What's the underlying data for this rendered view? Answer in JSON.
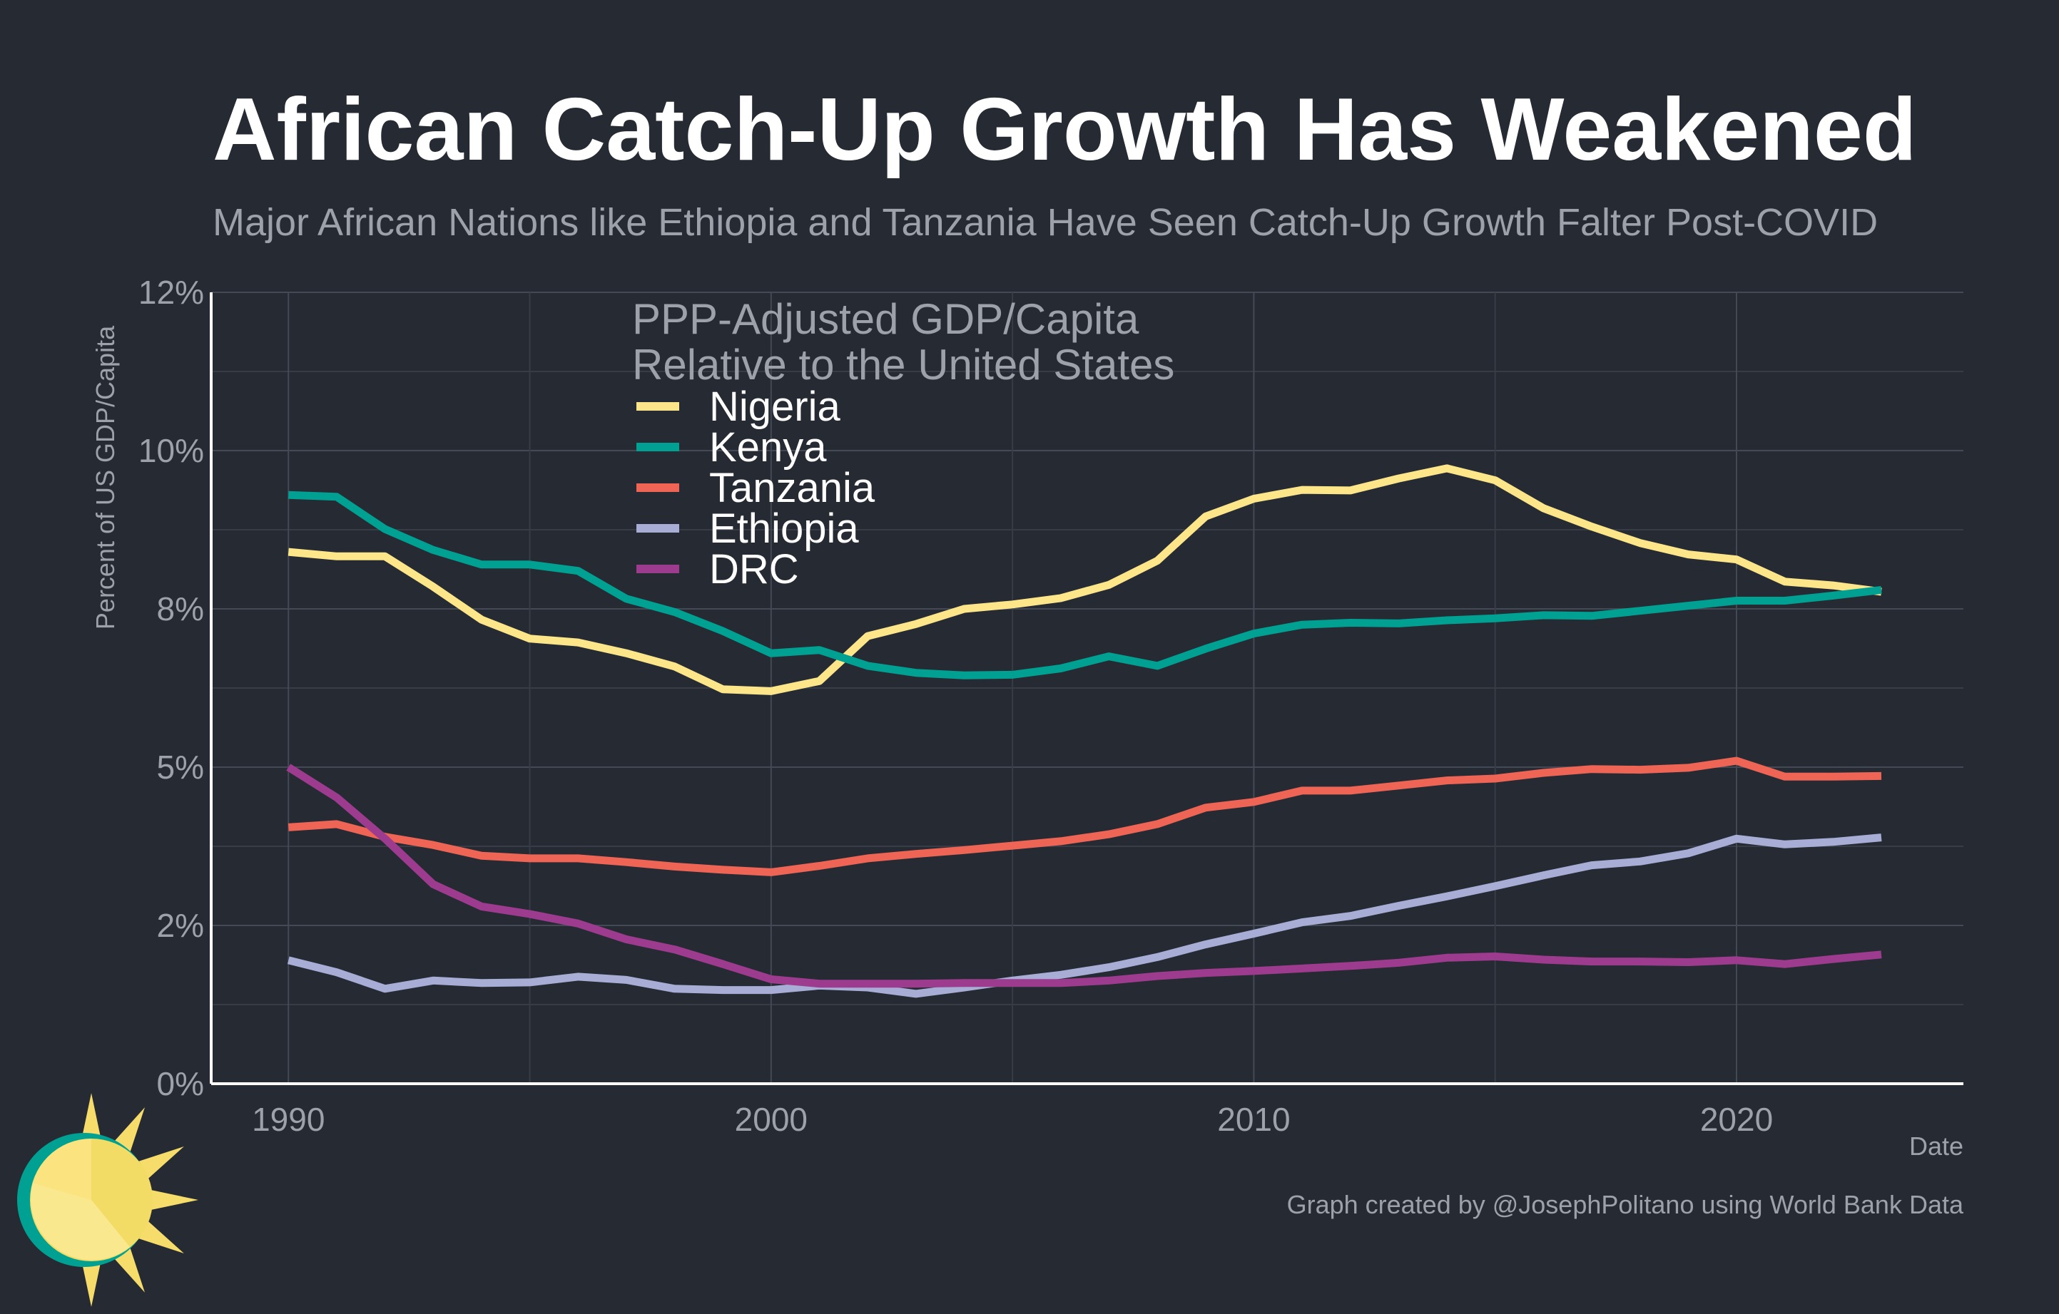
{
  "chart_data": {
    "type": "line",
    "title": "African Catch-Up Growth Has Weakened",
    "subtitle": "Major African Nations like Ethiopia and Tanzania Have Seen Catch-Up Growth Falter Post-COVID",
    "xlabel": "Date",
    "ylabel": "Percent of US GDP/Capita",
    "caption": "Graph created by @JosephPolitano using World Bank Data",
    "legend_title": [
      "PPP-Adjusted GDP/Capita",
      "Relative to the United States"
    ],
    "legend_position": "top-center",
    "grid": true,
    "xlim": [
      1988.4,
      2024.7
    ],
    "ylim": [
      0,
      12.5
    ],
    "x_ticks": [
      {
        "value": 1990,
        "label": "1990"
      },
      {
        "value": 2000,
        "label": "2000"
      },
      {
        "value": 2010,
        "label": "2010"
      },
      {
        "value": 2020,
        "label": "2020"
      }
    ],
    "y_ticks": [
      {
        "value": 0,
        "label": "0%"
      },
      {
        "value": 2.5,
        "label": "2%"
      },
      {
        "value": 5,
        "label": "5%"
      },
      {
        "value": 7.5,
        "label": "8%"
      },
      {
        "value": 10,
        "label": "10%"
      },
      {
        "value": 12.5,
        "label": "12%"
      }
    ],
    "x": [
      1990,
      1991,
      1992,
      1993,
      1994,
      1995,
      1996,
      1997,
      1998,
      1999,
      2000,
      2001,
      2002,
      2003,
      2004,
      2005,
      2006,
      2007,
      2008,
      2009,
      2010,
      2011,
      2012,
      2013,
      2014,
      2015,
      2016,
      2017,
      2018,
      2019,
      2020,
      2021,
      2022,
      2023
    ],
    "series": [
      {
        "name": "Nigeria",
        "color": "#fde68a",
        "values": [
          8.4,
          8.33,
          8.33,
          7.85,
          7.33,
          7.03,
          6.97,
          6.8,
          6.59,
          6.23,
          6.2,
          6.36,
          7.07,
          7.26,
          7.5,
          7.57,
          7.67,
          7.88,
          8.26,
          8.96,
          9.24,
          9.38,
          9.37,
          9.56,
          9.72,
          9.53,
          9.09,
          8.8,
          8.54,
          8.36,
          8.28,
          7.93,
          7.87,
          7.77
        ]
      },
      {
        "name": "Kenya",
        "color": "#00a092",
        "values": [
          9.3,
          9.27,
          8.76,
          8.43,
          8.2,
          8.2,
          8.1,
          7.66,
          7.45,
          7.15,
          6.8,
          6.85,
          6.6,
          6.49,
          6.45,
          6.46,
          6.56,
          6.75,
          6.6,
          6.87,
          7.11,
          7.25,
          7.28,
          7.27,
          7.32,
          7.35,
          7.4,
          7.39,
          7.47,
          7.55,
          7.63,
          7.63,
          7.71,
          7.8
        ]
      },
      {
        "name": "Tanzania",
        "color": "#ee6455",
        "values": [
          4.05,
          4.1,
          3.9,
          3.77,
          3.6,
          3.56,
          3.56,
          3.5,
          3.43,
          3.38,
          3.34,
          3.44,
          3.56,
          3.63,
          3.69,
          3.76,
          3.83,
          3.94,
          4.1,
          4.36,
          4.45,
          4.63,
          4.63,
          4.71,
          4.79,
          4.82,
          4.91,
          4.97,
          4.96,
          4.99,
          5.1,
          4.85,
          4.85,
          4.86
        ]
      },
      {
        "name": "Ethiopia",
        "color": "#a8add6",
        "values": [
          1.95,
          1.76,
          1.5,
          1.63,
          1.59,
          1.6,
          1.69,
          1.64,
          1.5,
          1.48,
          1.48,
          1.55,
          1.52,
          1.42,
          1.52,
          1.63,
          1.72,
          1.84,
          2.0,
          2.2,
          2.37,
          2.55,
          2.65,
          2.81,
          2.96,
          3.12,
          3.29,
          3.45,
          3.51,
          3.64,
          3.87,
          3.78,
          3.82,
          3.89
        ]
      },
      {
        "name": "DRC",
        "color": "#9d3c8f",
        "values": [
          5.0,
          4.52,
          3.87,
          3.15,
          2.8,
          2.68,
          2.53,
          2.28,
          2.12,
          1.89,
          1.65,
          1.58,
          1.58,
          1.58,
          1.59,
          1.59,
          1.59,
          1.63,
          1.7,
          1.75,
          1.78,
          1.82,
          1.86,
          1.91,
          1.99,
          2.01,
          1.96,
          1.93,
          1.93,
          1.92,
          1.95,
          1.89,
          1.97,
          2.04
        ]
      }
    ]
  },
  "logo": {
    "name": "sun-logo",
    "colors": {
      "ring": "#00a092",
      "sun": "#fde68a",
      "rays": "#f6dc6a"
    }
  }
}
